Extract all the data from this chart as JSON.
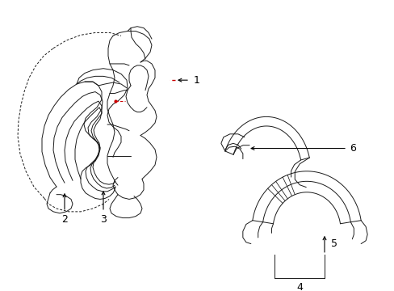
{
  "background_color": "#ffffff",
  "fig_width": 4.89,
  "fig_height": 3.6,
  "dpi": 100,
  "line_color": "#1a1a1a",
  "dash_color": "#1a1a1a",
  "red_color": "#cc0000",
  "lw": 0.7,
  "lw_thick": 1.1
}
